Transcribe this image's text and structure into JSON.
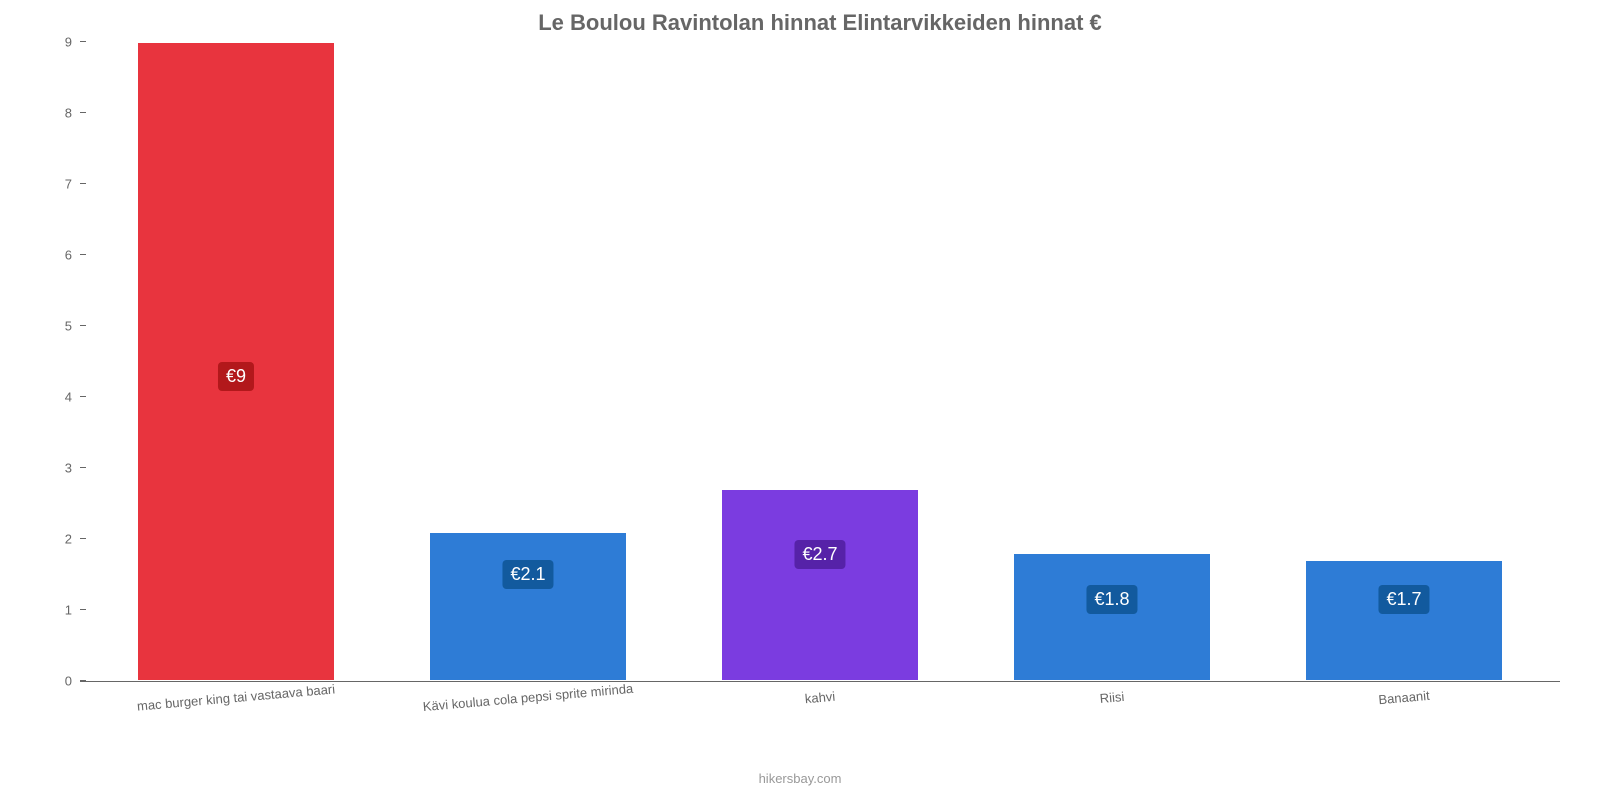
{
  "chart": {
    "type": "bar",
    "title": "Le Boulou Ravintolan hinnat Elintarvikkeiden hinnat €",
    "title_fontsize": 22,
    "title_color": "#666666",
    "attribution": "hikersbay.com",
    "attribution_color": "#999999",
    "background_color": "#ffffff",
    "axis_color": "#666666",
    "tick_fontsize": 13,
    "y": {
      "min": 0,
      "max": 9,
      "ticks": [
        0,
        1,
        2,
        3,
        4,
        5,
        6,
        7,
        8,
        9
      ]
    },
    "bar_width_pct": 68,
    "bars": [
      {
        "category": "mac burger king tai vastaava baari",
        "value": 9,
        "display": "€9",
        "fill": "#e8343e",
        "label_bg": "#b2181b",
        "label_y_pct": 50
      },
      {
        "category": "Kävi koulua cola pepsi sprite mirinda",
        "value": 2.1,
        "display": "€2.1",
        "fill": "#2e7cd6",
        "label_bg": "#125a9e",
        "label_y_pct": 81
      },
      {
        "category": "kahvi",
        "value": 2.7,
        "display": "€2.7",
        "fill": "#7b3ce0",
        "label_bg": "#5622a8",
        "label_y_pct": 78
      },
      {
        "category": "Riisi",
        "value": 1.8,
        "display": "€1.8",
        "fill": "#2e7cd6",
        "label_bg": "#125a9e",
        "label_y_pct": 85
      },
      {
        "category": "Banaanit",
        "value": 1.7,
        "display": "€1.7",
        "fill": "#2e7cd6",
        "label_bg": "#125a9e",
        "label_y_pct": 85
      }
    ]
  }
}
